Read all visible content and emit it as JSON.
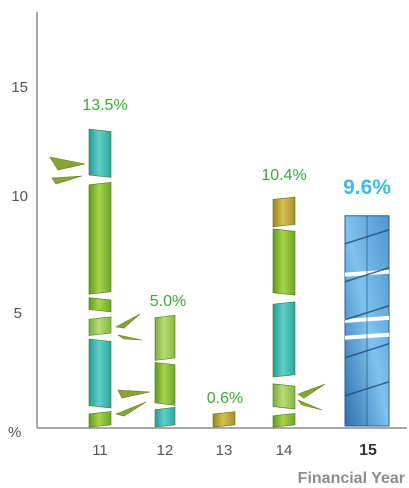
{
  "chart_data": {
    "type": "bar",
    "categories": [
      "11",
      "12",
      "13",
      "14",
      "15"
    ],
    "values": [
      13.5,
      5.0,
      0.6,
      10.4,
      9.6
    ],
    "value_labels": [
      "13.5%",
      "5.0%",
      "0.6%",
      "10.4%",
      "9.6%"
    ],
    "highlight_category": "15",
    "y_unit_label": "%",
    "y_ticks": [
      "5",
      "10",
      "15"
    ],
    "ylim": [
      0,
      17.5
    ],
    "xlabel": "Financial Year",
    "grid": false,
    "colors": {
      "value_label": "#3aaa35",
      "highlight_label": "#3fb8e8",
      "axis": "#a8a8a8",
      "tick_text": "#555555",
      "xlabel_text": "#8c8c8c",
      "bamboo_green": "#8fc13a",
      "bamboo_teal": "#3fbab0",
      "bamboo_olive": "#b9a438",
      "glass_blue": "#5fa6d8"
    }
  }
}
